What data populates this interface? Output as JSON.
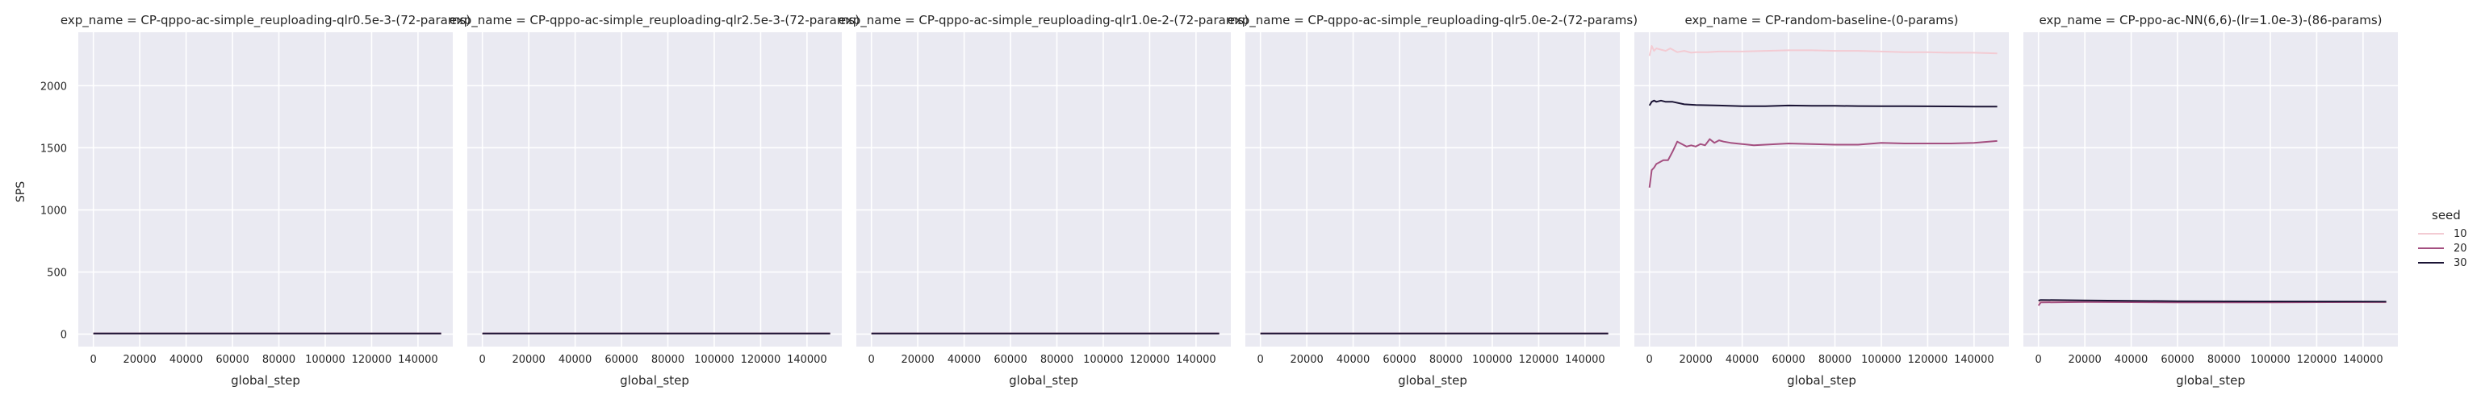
{
  "figure": {
    "ylabel": "SPS",
    "legend_title": "seed"
  },
  "chart_data": [
    {
      "type": "line",
      "title": "exp_name = CP-qppo-ac-simple_reuploading-qlr0.5e-3-(72-params)",
      "xlabel": "global_step",
      "ylabel": "SPS",
      "xlim": [
        -6500,
        155000
      ],
      "ylim": [
        -100,
        2430
      ],
      "xticks": [
        0,
        20000,
        40000,
        60000,
        80000,
        100000,
        120000,
        140000
      ],
      "yticks": [
        0,
        500,
        1000,
        1500,
        2000
      ],
      "grid": true,
      "series": [
        {
          "name": "10",
          "color": "#f3cbd3",
          "x": [
            0,
            150000
          ],
          "y": [
            5,
            5
          ]
        },
        {
          "name": "20",
          "color": "#a44f80",
          "x": [
            0,
            150000
          ],
          "y": [
            5,
            5
          ]
        },
        {
          "name": "30",
          "color": "#1b1435",
          "x": [
            0,
            150000
          ],
          "y": [
            5,
            5
          ]
        }
      ]
    },
    {
      "type": "line",
      "title": "exp_name = CP-qppo-ac-simple_reuploading-qlr2.5e-3-(72-params)",
      "xlabel": "global_step",
      "xlim": [
        -6500,
        155000
      ],
      "ylim": [
        -100,
        2430
      ],
      "xticks": [
        0,
        20000,
        40000,
        60000,
        80000,
        100000,
        120000,
        140000
      ],
      "grid": true,
      "series": [
        {
          "name": "10",
          "color": "#f3cbd3",
          "x": [
            0,
            150000
          ],
          "y": [
            5,
            5
          ]
        },
        {
          "name": "20",
          "color": "#a44f80",
          "x": [
            0,
            150000
          ],
          "y": [
            5,
            5
          ]
        },
        {
          "name": "30",
          "color": "#1b1435",
          "x": [
            0,
            150000
          ],
          "y": [
            5,
            5
          ]
        }
      ]
    },
    {
      "type": "line",
      "title": "exp_name = CP-qppo-ac-simple_reuploading-qlr1.0e-2-(72-params)",
      "xlabel": "global_step",
      "xlim": [
        -6500,
        155000
      ],
      "ylim": [
        -100,
        2430
      ],
      "xticks": [
        0,
        20000,
        40000,
        60000,
        80000,
        100000,
        120000,
        140000
      ],
      "grid": true,
      "series": [
        {
          "name": "10",
          "color": "#f3cbd3",
          "x": [
            0,
            150000
          ],
          "y": [
            5,
            5
          ]
        },
        {
          "name": "20",
          "color": "#a44f80",
          "x": [
            0,
            150000
          ],
          "y": [
            5,
            5
          ]
        },
        {
          "name": "30",
          "color": "#1b1435",
          "x": [
            0,
            150000
          ],
          "y": [
            5,
            5
          ]
        }
      ]
    },
    {
      "type": "line",
      "title": "exp_name = CP-qppo-ac-simple_reuploading-qlr5.0e-2-(72-params)",
      "xlabel": "global_step",
      "xlim": [
        -6500,
        155000
      ],
      "ylim": [
        -100,
        2430
      ],
      "xticks": [
        0,
        20000,
        40000,
        60000,
        80000,
        100000,
        120000,
        140000
      ],
      "grid": true,
      "series": [
        {
          "name": "10",
          "color": "#f3cbd3",
          "x": [
            0,
            150000
          ],
          "y": [
            5,
            5
          ]
        },
        {
          "name": "20",
          "color": "#a44f80",
          "x": [
            0,
            150000
          ],
          "y": [
            5,
            5
          ]
        },
        {
          "name": "30",
          "color": "#1b1435",
          "x": [
            0,
            150000
          ],
          "y": [
            5,
            5
          ]
        }
      ]
    },
    {
      "type": "line",
      "title": "exp_name = CP-random-baseline-(0-params)",
      "xlabel": "global_step",
      "xlim": [
        -6500,
        155000
      ],
      "ylim": [
        -100,
        2430
      ],
      "xticks": [
        0,
        20000,
        40000,
        60000,
        80000,
        100000,
        120000,
        140000
      ],
      "grid": true,
      "series": [
        {
          "name": "10",
          "color": "#f3cbd3",
          "x": [
            0,
            1000,
            2000,
            3000,
            5000,
            7000,
            9000,
            12000,
            15000,
            18000,
            20000,
            25000,
            30000,
            40000,
            50000,
            60000,
            70000,
            80000,
            90000,
            100000,
            110000,
            120000,
            130000,
            140000,
            150000
          ],
          "y": [
            2240,
            2320,
            2280,
            2300,
            2290,
            2280,
            2300,
            2270,
            2280,
            2265,
            2270,
            2270,
            2275,
            2275,
            2280,
            2285,
            2285,
            2280,
            2280,
            2275,
            2270,
            2270,
            2265,
            2265,
            2260
          ]
        },
        {
          "name": "20",
          "color": "#a44f80",
          "x": [
            0,
            1000,
            2000,
            3000,
            4000,
            6000,
            8000,
            10000,
            12000,
            14000,
            16000,
            18000,
            20000,
            22000,
            24000,
            26000,
            28000,
            30000,
            32000,
            35000,
            40000,
            45000,
            50000,
            55000,
            60000,
            70000,
            80000,
            90000,
            100000,
            110000,
            120000,
            130000,
            140000,
            150000
          ],
          "y": [
            1180,
            1320,
            1340,
            1370,
            1380,
            1400,
            1400,
            1470,
            1550,
            1530,
            1510,
            1520,
            1510,
            1530,
            1520,
            1570,
            1540,
            1560,
            1550,
            1540,
            1530,
            1520,
            1525,
            1530,
            1535,
            1530,
            1525,
            1525,
            1540,
            1535,
            1535,
            1535,
            1540,
            1555
          ]
        },
        {
          "name": "30",
          "color": "#1b1435",
          "x": [
            0,
            1000,
            2000,
            3000,
            5000,
            7000,
            10000,
            15000,
            20000,
            30000,
            40000,
            50000,
            60000,
            70000,
            80000,
            90000,
            100000,
            110000,
            120000,
            130000,
            140000,
            150000
          ],
          "y": [
            1840,
            1870,
            1880,
            1870,
            1880,
            1870,
            1870,
            1850,
            1845,
            1840,
            1835,
            1835,
            1840,
            1838,
            1838,
            1836,
            1835,
            1835,
            1834,
            1833,
            1832,
            1832
          ]
        }
      ]
    },
    {
      "type": "line",
      "title": "exp_name = CP-ppo-ac-NN(6,6)-(lr=1.0e-3)-(86-params)",
      "xlabel": "global_step",
      "xlim": [
        -6500,
        155000
      ],
      "ylim": [
        -100,
        2430
      ],
      "xticks": [
        0,
        20000,
        40000,
        60000,
        80000,
        100000,
        120000,
        140000
      ],
      "grid": true,
      "series": [
        {
          "name": "10",
          "color": "#f3cbd3",
          "x": [
            0,
            1000,
            20000,
            60000,
            100000,
            150000
          ],
          "y": [
            250,
            262,
            262,
            258,
            258,
            255
          ]
        },
        {
          "name": "20",
          "color": "#a44f80",
          "x": [
            0,
            1000,
            20000,
            60000,
            100000,
            150000
          ],
          "y": [
            230,
            255,
            258,
            255,
            255,
            258
          ]
        },
        {
          "name": "30",
          "color": "#1b1435",
          "x": [
            0,
            1000,
            20000,
            60000,
            100000,
            150000
          ],
          "y": [
            270,
            275,
            272,
            265,
            263,
            262
          ]
        }
      ]
    }
  ],
  "legend": {
    "title": "seed",
    "entries": [
      {
        "label": "10",
        "color": "#f3cbd3"
      },
      {
        "label": "20",
        "color": "#a44f80"
      },
      {
        "label": "30",
        "color": "#1b1435"
      }
    ]
  }
}
